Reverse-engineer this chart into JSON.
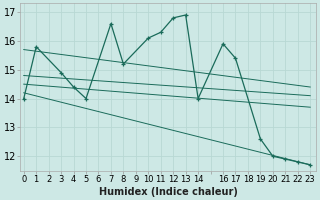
{
  "xlabel": "Humidex (Indice chaleur)",
  "bg_color": "#cde8e5",
  "line_color": "#1a6b5a",
  "grid_color": "#b8d8d4",
  "main_x": [
    0,
    1,
    3,
    4,
    5,
    7,
    8,
    10,
    11,
    12,
    13,
    14,
    16,
    17,
    19,
    20,
    21,
    22,
    23
  ],
  "main_y": [
    14.0,
    15.8,
    14.9,
    14.4,
    14.0,
    16.6,
    15.2,
    16.1,
    16.3,
    16.8,
    16.9,
    14.0,
    15.9,
    15.4,
    12.6,
    12.0,
    11.9,
    11.8,
    11.7
  ],
  "trend_lines": [
    {
      "x": [
        0,
        23
      ],
      "y": [
        15.7,
        14.4
      ]
    },
    {
      "x": [
        0,
        23
      ],
      "y": [
        14.8,
        14.1
      ]
    },
    {
      "x": [
        0,
        23
      ],
      "y": [
        14.5,
        13.7
      ]
    },
    {
      "x": [
        0,
        23
      ],
      "y": [
        14.2,
        11.7
      ]
    }
  ],
  "ylim": [
    11.5,
    17.3
  ],
  "xlim": [
    -0.3,
    23.5
  ],
  "yticks": [
    12,
    13,
    14,
    15,
    16,
    17
  ],
  "xticks": [
    0,
    1,
    2,
    3,
    4,
    5,
    6,
    7,
    8,
    9,
    10,
    11,
    12,
    13,
    14,
    15,
    16,
    17,
    18,
    19,
    20,
    21,
    22,
    23
  ],
  "xtick_labels": [
    "0",
    "1",
    "2",
    "3",
    "4",
    "5",
    "6",
    "7",
    "8",
    "9",
    "10",
    "11",
    "12",
    "13",
    "14",
    "",
    "16",
    "17",
    "18",
    "19",
    "20",
    "21",
    "22",
    "23"
  ],
  "tick_fontsize": 6,
  "xlabel_fontsize": 7
}
